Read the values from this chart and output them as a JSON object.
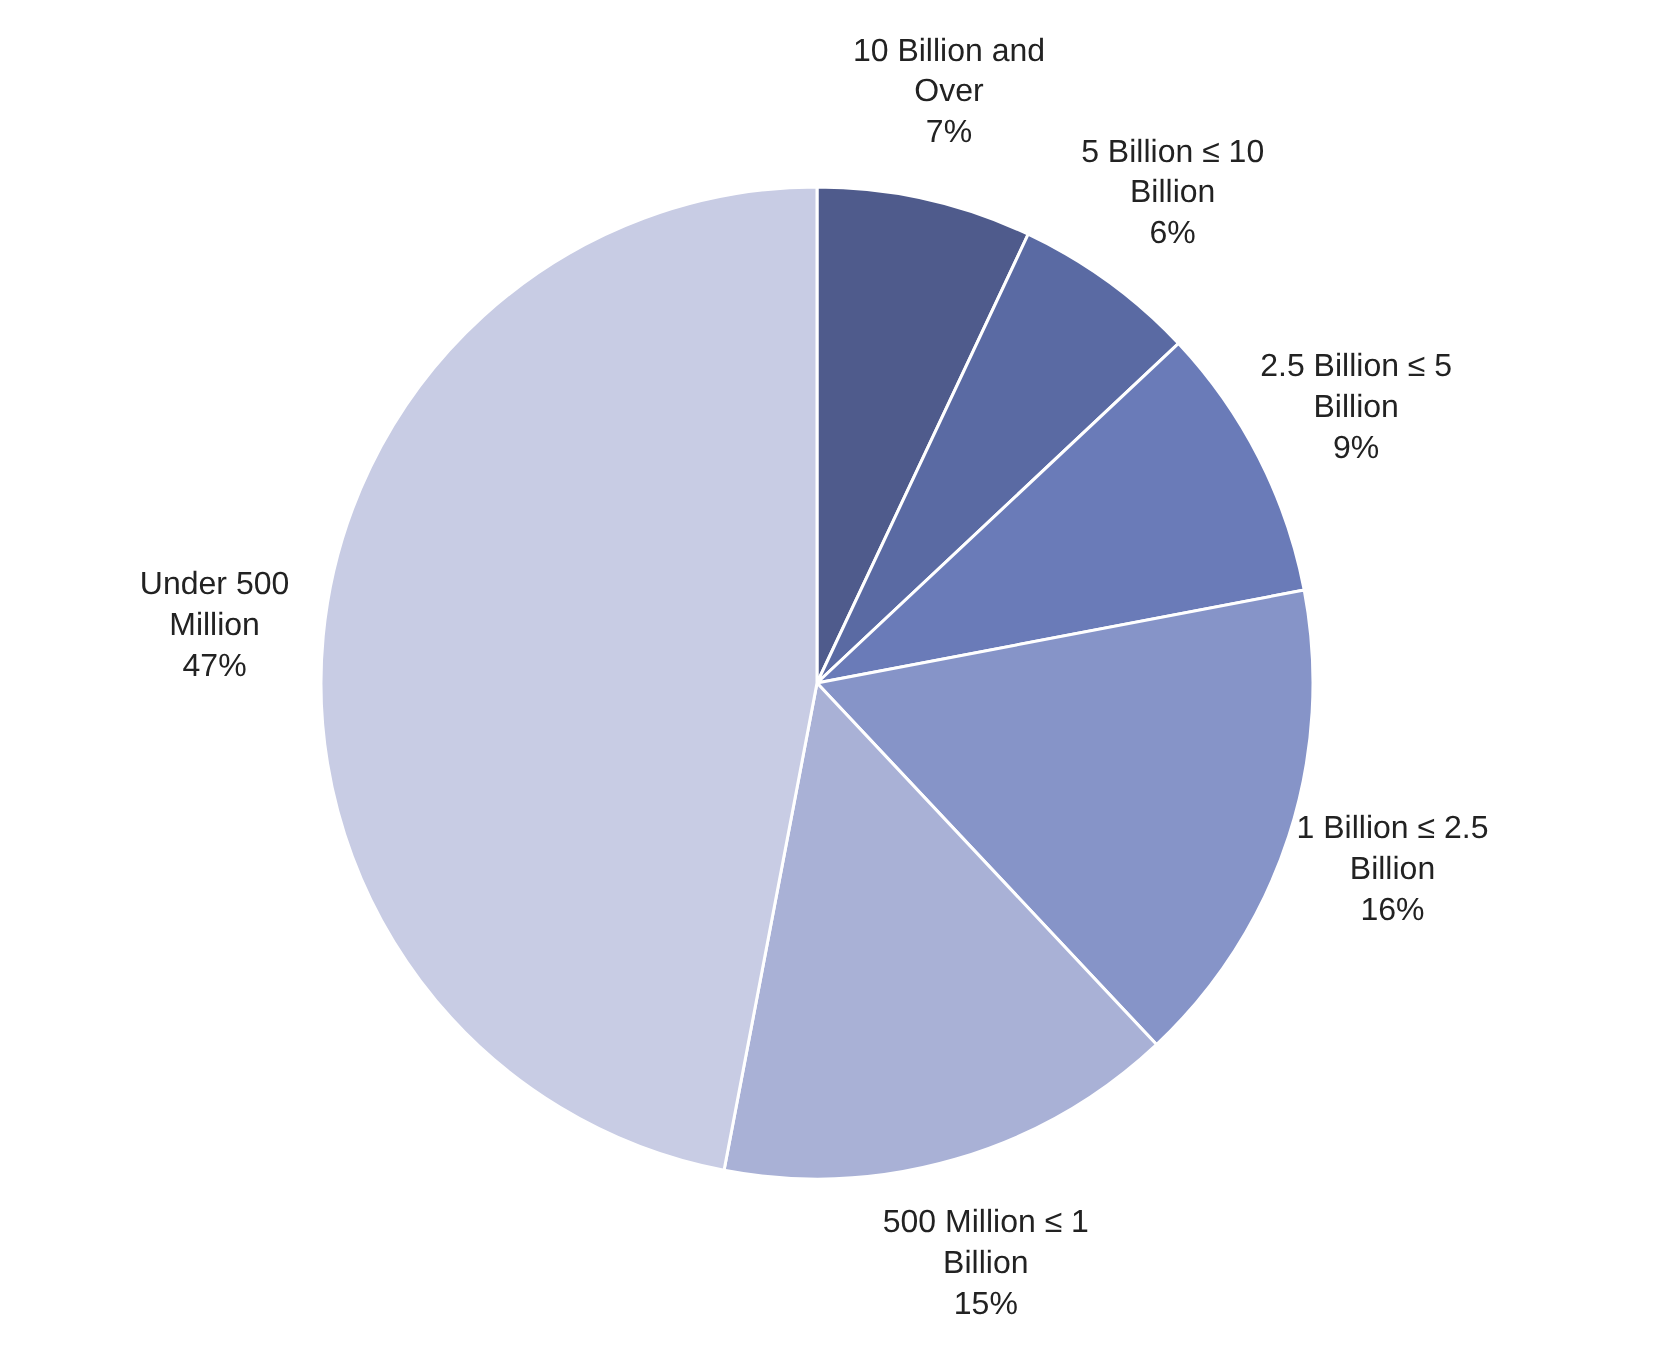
{
  "chart_data": {
    "type": "pie",
    "categories": [
      "10 Billion and Over",
      "5 Billion ≤ 10 Billion",
      "2.5 Billion ≤ 5 Billion",
      "1 Billion ≤ 2.5 Billion",
      "500 Million ≤ 1 Billion",
      "Under 500 Million"
    ],
    "values": [
      7,
      6,
      9,
      16,
      15,
      47
    ],
    "colors": [
      "#4f5b8c",
      "#5a6aa3",
      "#6a7bb8",
      "#8694c8",
      "#a9b1d6",
      "#c8cce4"
    ],
    "value_labels": [
      "7%",
      "6%",
      "9%",
      "16%",
      "15%",
      "47%"
    ]
  }
}
